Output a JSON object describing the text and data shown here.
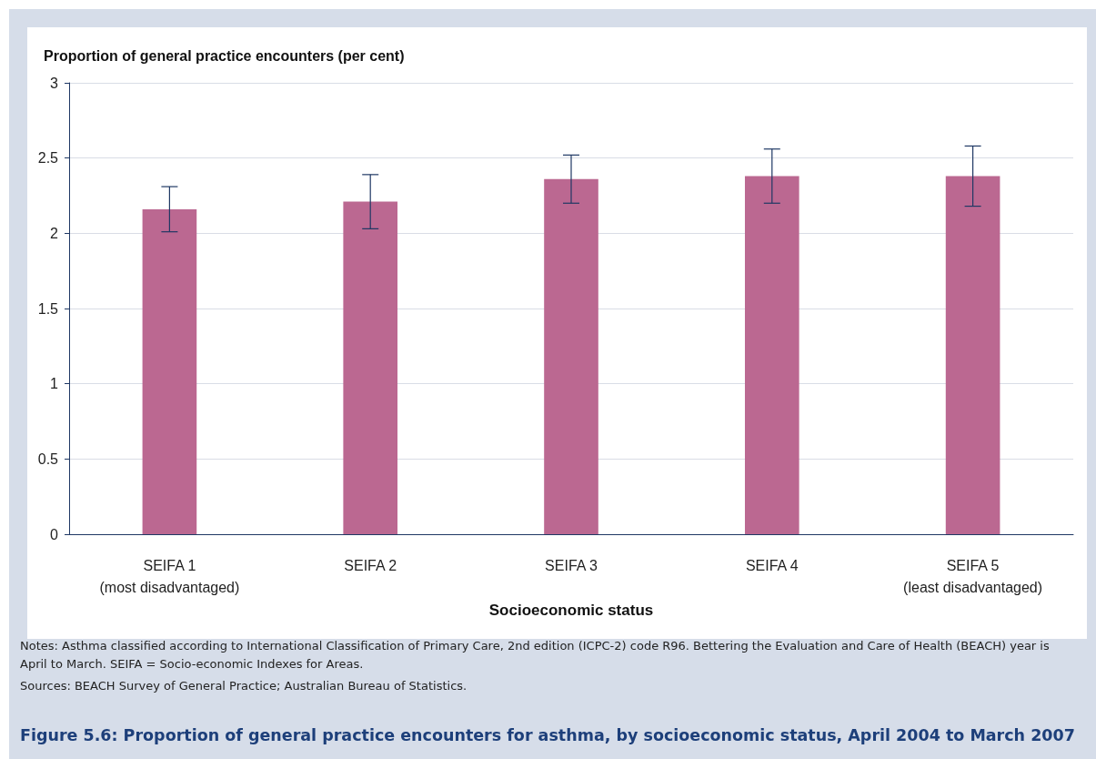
{
  "chart_data": {
    "type": "bar",
    "title": "Figure 5.6: Proportion of general practice encounters for asthma, by socioeconomic status, April 2004 to March 2007",
    "ylabel": "Proportion of general practice encounters (per cent)",
    "xlabel": "Socioeconomic status",
    "categories": [
      "SEIFA 1\n(most disadvantaged)",
      "SEIFA 2",
      "SEIFA 3",
      "SEIFA 4",
      "SEIFA 5\n(least disadvantaged)"
    ],
    "values": [
      2.16,
      2.21,
      2.36,
      2.38,
      2.38
    ],
    "errors": [
      [
        2.01,
        2.31
      ],
      [
        2.03,
        2.39
      ],
      [
        2.2,
        2.52
      ],
      [
        2.2,
        2.56
      ],
      [
        2.18,
        2.58
      ]
    ],
    "color": "#bb6891",
    "ylim": [
      0,
      3
    ],
    "yticks": [
      0,
      0.5,
      1,
      1.5,
      2,
      2.5,
      3
    ],
    "grid": "y",
    "annotations": [
      "Notes: Asthma classified according to International Classification of Primary Care, 2nd edition (ICPC-2) code R96. Bettering the Evaluation and Care of Health (BEACH) year is April to March. SEIFA = Socio-economic Indexes for Areas.",
      "Sources: BEACH Survey of General Practice; Australian Bureau of Statistics."
    ]
  }
}
